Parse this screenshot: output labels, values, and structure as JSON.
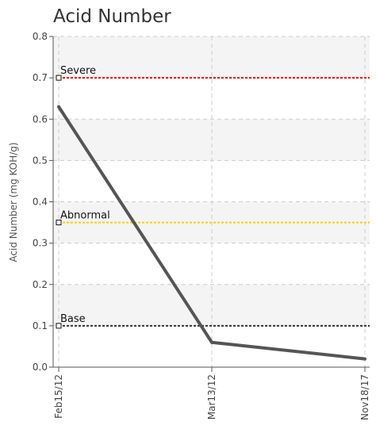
{
  "chart_data": {
    "type": "line",
    "title": "Acid Number",
    "ylabel": "Acid Number (mg KOH/g)",
    "xlabel": "",
    "ylim": [
      0,
      0.8
    ],
    "yticks": [
      "0.0",
      "0.1",
      "0.2",
      "0.3",
      "0.4",
      "0.5",
      "0.6",
      "0.7",
      "0.8"
    ],
    "categories": [
      "Feb15/12",
      "Mar13/12",
      "Nov18/17"
    ],
    "series": [
      {
        "values": [
          0.63,
          0.06,
          0.02
        ],
        "color": "#555555"
      }
    ],
    "reference_lines": [
      {
        "label": "Severe",
        "value": 0.7,
        "color": "#ff0000"
      },
      {
        "label": "Abnormal",
        "value": 0.35,
        "color": "#ffcc00"
      },
      {
        "label": "Base",
        "value": 0.1,
        "color": "#333333"
      }
    ],
    "grid": true,
    "band_colors": [
      "#f4f4f4",
      "#ffffff"
    ]
  }
}
